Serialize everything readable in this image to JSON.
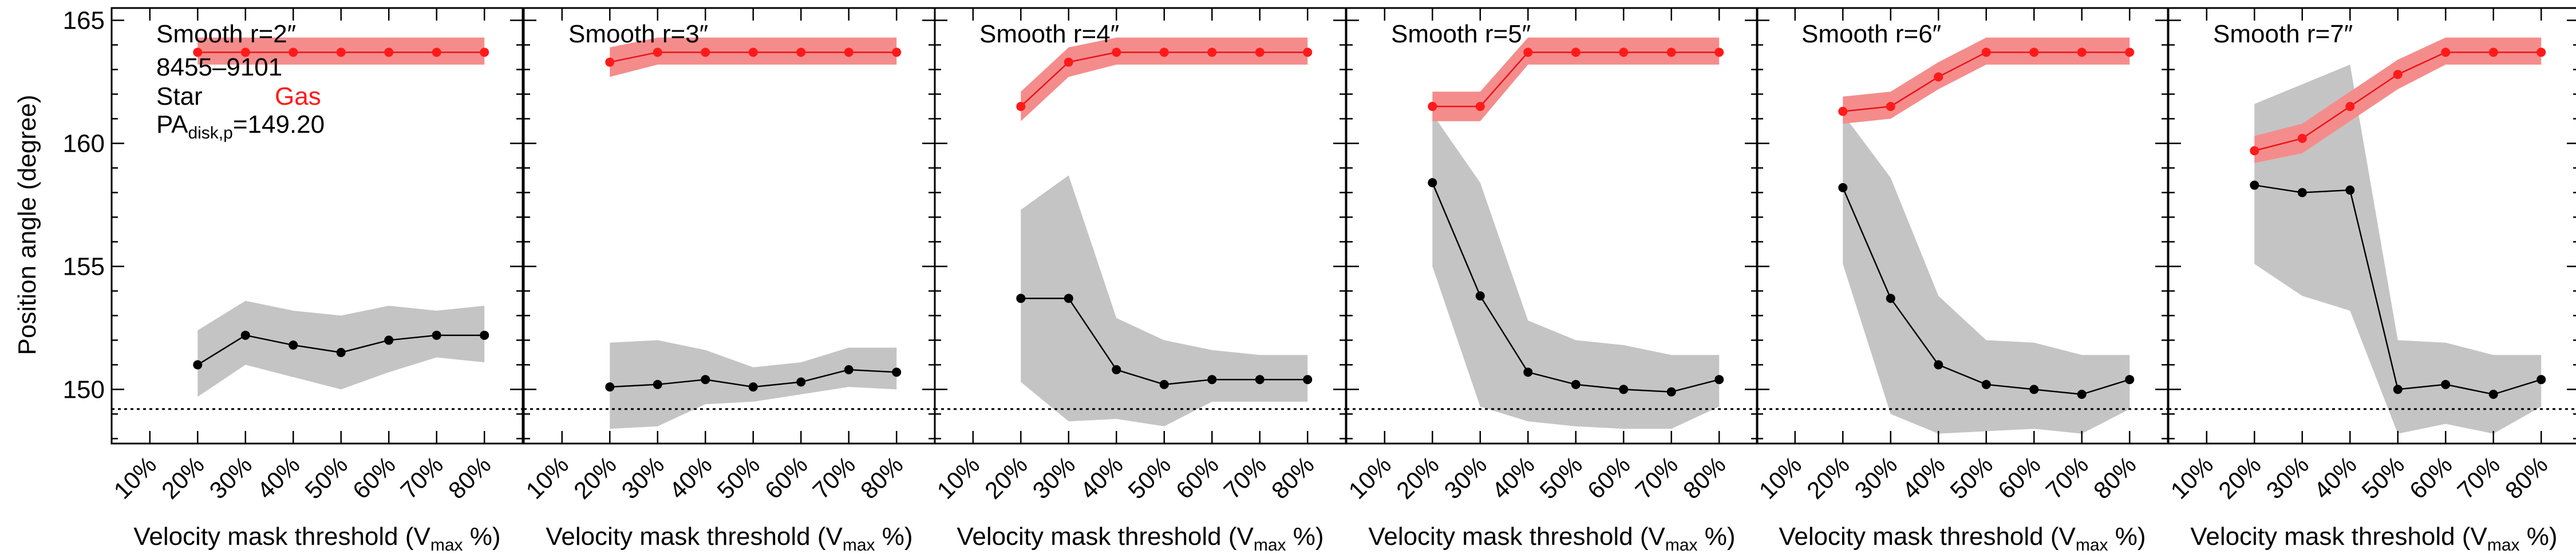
{
  "chart_data": {
    "type": "line",
    "ylabel": "Position angle (degree)",
    "xlabel_main": "Velocity mask threshold (V",
    "xlabel_sub": "max",
    "xlabel_tail": " %)",
    "x_ticks": [
      "10%",
      "20%",
      "30%",
      "40%",
      "50%",
      "60%",
      "70%",
      "80%"
    ],
    "x_tick_values": [
      10,
      20,
      30,
      40,
      50,
      60,
      70,
      80
    ],
    "xlim": [
      2,
      88
    ],
    "ylim": [
      147.8,
      165.5
    ],
    "y_ticks": [
      150,
      155,
      160,
      165
    ],
    "y_tick_labels": [
      "150",
      "155",
      "160",
      "165"
    ],
    "reference_line": 149.2,
    "legend": {
      "galaxy_id": "8455–9101",
      "star_label": "Star",
      "gas_label": "Gas",
      "pa_prefix": "PA",
      "pa_subscript": "disk,p",
      "pa_value": "=149.20"
    },
    "colors": {
      "star_line": "#000000",
      "star_band": "#c4c4c4",
      "gas_line": "#e8141a",
      "gas_band": "#f58c8c",
      "gas_point": "#ff1a1a",
      "reference": "#000000"
    },
    "x": [
      20,
      30,
      40,
      50,
      60,
      70,
      80
    ],
    "panels": [
      {
        "title": "Smooth r=2″",
        "star": [
          151.0,
          152.2,
          151.8,
          151.5,
          152.0,
          152.2,
          152.2
        ],
        "star_lo": [
          149.7,
          151.0,
          150.5,
          150.0,
          150.7,
          151.3,
          151.1
        ],
        "star_hi": [
          152.4,
          153.6,
          153.2,
          153.0,
          153.4,
          153.2,
          153.4
        ],
        "gas": [
          163.7,
          163.7,
          163.7,
          163.7,
          163.7,
          163.7,
          163.7
        ],
        "gas_lo": [
          163.2,
          163.2,
          163.2,
          163.2,
          163.2,
          163.2,
          163.2
        ],
        "gas_hi": [
          164.3,
          164.3,
          164.3,
          164.3,
          164.3,
          164.3,
          164.3
        ]
      },
      {
        "title": "Smooth r=3″",
        "star": [
          150.1,
          150.2,
          150.4,
          150.1,
          150.3,
          150.8,
          150.7
        ],
        "star_lo": [
          148.4,
          148.5,
          149.4,
          149.5,
          149.8,
          150.1,
          150.0
        ],
        "star_hi": [
          151.9,
          152.0,
          151.6,
          150.9,
          151.1,
          151.7,
          151.7
        ],
        "gas": [
          163.3,
          163.7,
          163.7,
          163.7,
          163.7,
          163.7,
          163.7
        ],
        "gas_lo": [
          162.7,
          163.2,
          163.2,
          163.2,
          163.2,
          163.2,
          163.2
        ],
        "gas_hi": [
          163.9,
          164.3,
          164.3,
          164.3,
          164.3,
          164.3,
          164.3
        ]
      },
      {
        "title": "Smooth r=4″",
        "star": [
          153.7,
          153.7,
          150.8,
          150.2,
          150.4,
          150.4,
          150.4
        ],
        "star_lo": [
          150.3,
          148.7,
          148.8,
          148.5,
          149.5,
          149.5,
          149.5
        ],
        "star_hi": [
          157.3,
          158.7,
          152.9,
          152.0,
          151.6,
          151.4,
          151.4
        ],
        "gas": [
          161.5,
          163.3,
          163.7,
          163.7,
          163.7,
          163.7,
          163.7
        ],
        "gas_lo": [
          160.9,
          162.7,
          163.2,
          163.2,
          163.2,
          163.2,
          163.2
        ],
        "gas_hi": [
          162.1,
          163.9,
          164.3,
          164.3,
          164.3,
          164.3,
          164.3
        ]
      },
      {
        "title": "Smooth r=5″",
        "star": [
          158.4,
          153.8,
          150.7,
          150.2,
          150.0,
          149.9,
          150.4
        ],
        "star_lo": [
          155.0,
          149.3,
          148.7,
          148.5,
          148.4,
          148.4,
          149.3
        ],
        "star_hi": [
          161.2,
          158.4,
          152.8,
          152.0,
          151.8,
          151.4,
          151.4
        ],
        "gas": [
          161.5,
          161.5,
          163.7,
          163.7,
          163.7,
          163.7,
          163.7
        ],
        "gas_lo": [
          160.9,
          160.9,
          163.2,
          163.2,
          163.2,
          163.2,
          163.2
        ],
        "gas_hi": [
          162.1,
          162.1,
          164.3,
          164.3,
          164.3,
          164.3,
          164.3
        ]
      },
      {
        "title": "Smooth r=6″",
        "star": [
          158.2,
          153.7,
          151.0,
          150.2,
          150.0,
          149.8,
          150.4
        ],
        "star_lo": [
          155.1,
          149.0,
          148.2,
          148.3,
          148.4,
          148.2,
          149.2
        ],
        "star_hi": [
          161.2,
          158.6,
          153.8,
          152.0,
          151.9,
          151.4,
          151.4
        ],
        "gas": [
          161.3,
          161.5,
          162.7,
          163.7,
          163.7,
          163.7,
          163.7
        ],
        "gas_lo": [
          160.8,
          161.0,
          162.2,
          163.2,
          163.2,
          163.2,
          163.2
        ],
        "gas_hi": [
          161.9,
          162.1,
          163.3,
          164.3,
          164.3,
          164.3,
          164.3
        ]
      },
      {
        "title": "Smooth r=7″",
        "star": [
          158.3,
          158.0,
          158.1,
          150.0,
          150.2,
          149.8,
          150.4
        ],
        "star_lo": [
          155.1,
          153.8,
          153.2,
          148.2,
          148.6,
          148.2,
          149.3
        ],
        "star_hi": [
          161.6,
          162.4,
          163.2,
          152.0,
          151.9,
          151.4,
          151.4
        ],
        "gas": [
          159.7,
          160.2,
          161.5,
          162.8,
          163.7,
          163.7,
          163.7
        ],
        "gas_lo": [
          159.2,
          159.6,
          160.9,
          162.2,
          163.2,
          163.2,
          163.2
        ],
        "gas_hi": [
          160.3,
          160.8,
          162.1,
          163.4,
          164.3,
          164.3,
          164.3
        ]
      }
    ]
  }
}
